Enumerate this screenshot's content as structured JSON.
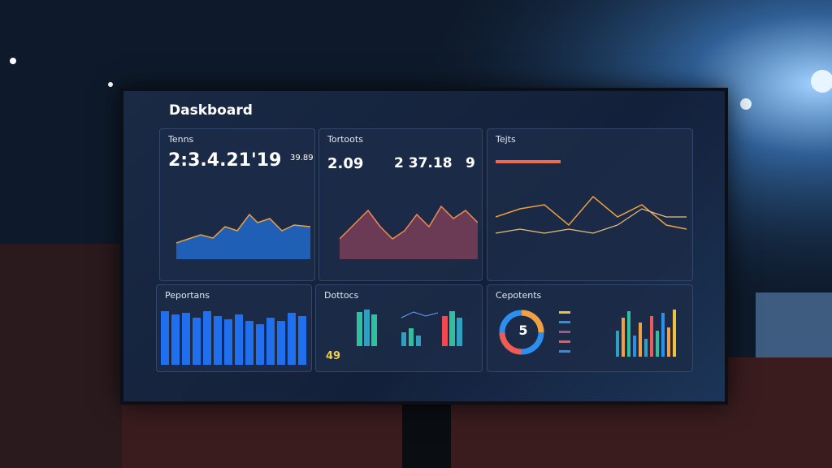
{
  "header": {
    "title": "Daskboard"
  },
  "panels": [
    {
      "title": "Tenns",
      "value": "2:3.4.21'19",
      "side": "39.89"
    },
    {
      "title": "Tortoots",
      "value": "2.09",
      "value2": "2 37.18",
      "value3": "9"
    },
    {
      "title": "Tejts"
    },
    {
      "title": "Peportans"
    },
    {
      "title": "Dottocs",
      "value": "49"
    },
    {
      "title": "Cepotents",
      "value": "5"
    }
  ]
}
